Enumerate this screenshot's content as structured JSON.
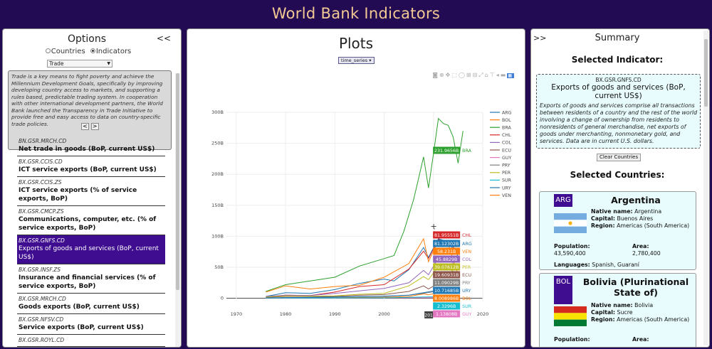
{
  "app_title": "World Bank Indicators",
  "left": {
    "title": "Options",
    "collapse_label": "<<",
    "radio_countries": "Countries",
    "radio_indicators": "Indicators",
    "topic_select": "Trade",
    "description": "Trade is a key means to fight poverty and achieve the Millennium Development Goals, specifically by improving developing country access to markets, and supporting a rules based, predictable trading system. In cooperation with other international development partners, the World Bank launched the Transparency in Trade Initiative to provide free and easy access to data on country-specific trade policies.",
    "prev_label": "<",
    "next_label": ">",
    "indicators": [
      {
        "code": "BN.GSR.MRCH.CD",
        "name": "Net trade in goods (BoP, current US$)"
      },
      {
        "code": "BX.GSR.CCIS.CD",
        "name": "ICT service exports (BoP, current US$)"
      },
      {
        "code": "BX.GSR.CCIS.ZS",
        "name": "ICT service exports (% of service exports, BoP)"
      },
      {
        "code": "BX.GSR.CMCP.ZS",
        "name": "Communications, computer, etc. (% of service exports, BoP)"
      },
      {
        "code": "BX.GSR.GNFS.CD",
        "name": "Exports of goods and services (BoP, current US$)"
      },
      {
        "code": "BX.GSR.INSF.ZS",
        "name": "Insurance and financial services (% of service exports, BoP)"
      },
      {
        "code": "BX.GSR.MRCH.CD",
        "name": "Goods exports (BoP, current US$)"
      },
      {
        "code": "BX.GSR.NFSV.CD",
        "name": "Service exports (BoP, current US$)"
      },
      {
        "code": "BX.GSR.ROYL.CD",
        "name": ""
      }
    ]
  },
  "mid": {
    "title": "Plots",
    "plot_type": "time_series"
  },
  "right": {
    "expand_label": ">>",
    "title": "Summary",
    "selected_indicator_heading": "Selected Indicator:",
    "indicator_code": "BX.GSR.GNFS.CD",
    "indicator_name": "Exports of goods and services (BoP, current US$)",
    "indicator_desc": "Exports of goods and services comprise all transactions between residents of a country and the rest of the world involving a change of ownership from residents to nonresidents of general merchandise, net exports of goods under merchanting, nonmonetary gold, and services. Data are in current U.S. dollars.",
    "clear_button": "Clear Countries",
    "selected_countries_heading": "Selected Countries:",
    "countries": [
      {
        "code": "ARG",
        "name": "Argentina",
        "native_label": "Native name:",
        "native": "Argentina",
        "capital_label": "Capital:",
        "capital": "Buenos Aires",
        "region_label": "Region:",
        "region": "Americas (South America)",
        "population_label": "Population:",
        "population": "43,590,400",
        "area_label": "Area:",
        "area": "2,780,400",
        "languages_label": "Languages:",
        "languages": "Spanish, Guaraní"
      },
      {
        "code": "BOL",
        "name": "Bolivia (Plurinational State of)",
        "native_label": "Native name:",
        "native": "Bolivia",
        "capital_label": "Capital:",
        "capital": "Sucre",
        "region_label": "Region:",
        "region": "Americas (South America)",
        "population_label": "Population:",
        "area_label": "Area:"
      }
    ]
  },
  "chart_data": {
    "type": "line",
    "x_ticks": [
      "1970",
      "1980",
      "1990",
      "2000",
      "2010",
      "2020"
    ],
    "y_ticks": [
      "0",
      "50B",
      "100B",
      "150B",
      "200B",
      "250B",
      "300B"
    ],
    "ylim": [
      -5,
      300
    ],
    "xlim": [
      1968,
      2020
    ],
    "legend_position": "right",
    "series": [
      {
        "name": "ARG",
        "color": "#1f77b4",
        "x": [
          1976,
          1980,
          1985,
          1990,
          1995,
          2000,
          2002,
          2005,
          2008,
          2009,
          2011,
          2013,
          2015
        ],
        "y": [
          3,
          9,
          8,
          14,
          24,
          31,
          28,
          46,
          82,
          66,
          96,
          91,
          68
        ]
      },
      {
        "name": "BOL",
        "color": "#ff7f0e",
        "x": [
          1976,
          1980,
          1985,
          1990,
          1995,
          2000,
          2005,
          2008,
          2009,
          2011,
          2013,
          2015
        ],
        "y": [
          0.5,
          1,
          0.8,
          1,
          1.4,
          1.5,
          3,
          7,
          5.5,
          9,
          12,
          8.7
        ]
      },
      {
        "name": "BRA",
        "color": "#2ca02c",
        "x": [
          1976,
          1980,
          1985,
          1990,
          1995,
          2000,
          2002,
          2004,
          2006,
          2008,
          2009,
          2010,
          2011,
          2012,
          2013,
          2014,
          2015,
          2016
        ],
        "y": [
          11,
          22,
          28,
          34,
          52,
          64,
          69,
          108,
          160,
          228,
          178,
          233,
          290,
          282,
          279,
          260,
          218,
          270
        ]
      },
      {
        "name": "CHL",
        "color": "#d62728",
        "x": [
          1976,
          1980,
          1985,
          1990,
          1995,
          2000,
          2005,
          2008,
          2009,
          2011,
          2013,
          2015
        ],
        "y": [
          2,
          5,
          4.5,
          10,
          19,
          22,
          47,
          76,
          64,
          95,
          90,
          75
        ]
      },
      {
        "name": "COL",
        "color": "#9467bd",
        "x": [
          1976,
          1980,
          1985,
          1990,
          1995,
          2000,
          2005,
          2008,
          2009,
          2011,
          2013,
          2015
        ],
        "y": [
          3,
          5,
          4.5,
          8,
          12,
          16,
          25,
          45,
          38,
          65,
          67,
          46
        ]
      },
      {
        "name": "ECU",
        "color": "#8c564b",
        "x": [
          1976,
          1980,
          1985,
          1990,
          1995,
          2000,
          2005,
          2008,
          2009,
          2011,
          2013,
          2015
        ],
        "y": [
          1.5,
          3,
          3,
          3,
          5,
          6,
          11,
          20,
          15,
          24,
          27,
          20
        ]
      },
      {
        "name": "GUY",
        "color": "#e377c2",
        "x": [
          1976,
          1990,
          2000,
          2010,
          2015
        ],
        "y": [
          0.3,
          0.4,
          0.6,
          1,
          1.3
        ]
      },
      {
        "name": "PRY",
        "color": "#7f7f7f",
        "x": [
          1976,
          1990,
          2000,
          2005,
          2008,
          2011,
          2013,
          2015
        ],
        "y": [
          0.5,
          2,
          3,
          5,
          8,
          12,
          14,
          11
        ]
      },
      {
        "name": "PER",
        "color": "#bcbd22",
        "x": [
          1976,
          1980,
          1985,
          1990,
          1995,
          2000,
          2005,
          2008,
          2009,
          2011,
          2013,
          2015
        ],
        "y": [
          2,
          4,
          3.5,
          4,
          6.5,
          8,
          20,
          35,
          30,
          52,
          48,
          39
        ]
      },
      {
        "name": "SUR",
        "color": "#17becf",
        "x": [
          1976,
          1990,
          2000,
          2010,
          2015
        ],
        "y": [
          0.5,
          0.6,
          0.7,
          2.5,
          2.3
        ]
      },
      {
        "name": "URY",
        "color": "#1f77b4",
        "x": [
          1976,
          1990,
          2000,
          2005,
          2008,
          2011,
          2013,
          2015
        ],
        "y": [
          0.7,
          2,
          3.5,
          5,
          9,
          13,
          15,
          11
        ]
      },
      {
        "name": "VEN",
        "color": "#ff7f0e",
        "x": [
          1976,
          1980,
          1985,
          1990,
          1995,
          2000,
          2005,
          2008,
          2009,
          2011,
          2013,
          2015
        ],
        "y": [
          10,
          20,
          15,
          19,
          21,
          34,
          56,
          96,
          59,
          93,
          88,
          38
        ]
      }
    ],
    "hover_labels": [
      {
        "series": "BRA",
        "value": "231.9656B",
        "name": "BRA"
      },
      {
        "series": "CHL",
        "value": "81.95551B",
        "name": "CHL"
      },
      {
        "series": "ARG",
        "value": "81.12302B",
        "name": "ARG"
      },
      {
        "series": "VEN",
        "value": "58.231B",
        "name": "VEN"
      },
      {
        "series": "COL",
        "value": "45.8829B",
        "name": "COL"
      },
      {
        "series": "PER",
        "value": "39.07612B",
        "name": "PER"
      },
      {
        "series": "ECU",
        "value": "19.60931B",
        "name": "ECU"
      },
      {
        "series": "PRY",
        "value": "11.09029B",
        "name": "PRY"
      },
      {
        "series": "URY",
        "value": "10.71685B",
        "name": "URY"
      },
      {
        "series": "BOL",
        "value": "8.008986B",
        "name": "BOL"
      },
      {
        "series": "SUR",
        "value": "2.3296B",
        "name": "SUR"
      },
      {
        "series": "GUY",
        "value": "1.13808B",
        "name": "GUY"
      }
    ],
    "hover_x_label": "201"
  }
}
